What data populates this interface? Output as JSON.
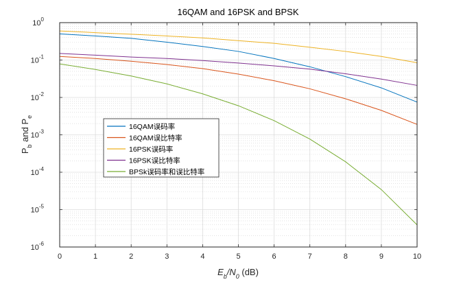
{
  "chart_data": {
    "type": "line",
    "title": "16QAM and 16PSK and BPSK",
    "xlabel": "E_b/N_0 (dB)",
    "ylabel": "P_b and P_e",
    "x_scale": "linear",
    "y_scale": "log",
    "xlim": [
      0,
      10
    ],
    "ylim": [
      1e-06,
      1
    ],
    "x_ticks": [
      0,
      1,
      2,
      3,
      4,
      5,
      6,
      7,
      8,
      9,
      10
    ],
    "y_tick_exponents": [
      -6,
      -5,
      -4,
      -3,
      -2,
      -1,
      0
    ],
    "grid": true,
    "minor_grid": true,
    "legend_position": "center-left",
    "x": [
      0,
      1,
      2,
      3,
      4,
      5,
      6,
      7,
      8,
      9,
      10
    ],
    "series": [
      {
        "name": "16QAM误码率",
        "color": "#0072BD",
        "values": [
          0.5,
          0.44,
          0.38,
          0.3,
          0.23,
          0.17,
          0.11,
          0.066,
          0.036,
          0.018,
          0.0075
        ]
      },
      {
        "name": "16QAM误比特率",
        "color": "#D95319",
        "values": [
          0.125,
          0.11,
          0.093,
          0.076,
          0.059,
          0.042,
          0.028,
          0.017,
          0.0092,
          0.0045,
          0.0019
        ]
      },
      {
        "name": "16PSK误码率",
        "color": "#EDB120",
        "values": [
          0.6,
          0.54,
          0.49,
          0.44,
          0.39,
          0.33,
          0.28,
          0.22,
          0.17,
          0.125,
          0.085
        ]
      },
      {
        "name": "16PSK误比特率",
        "color": "#7E2F8E",
        "values": [
          0.15,
          0.135,
          0.12,
          0.11,
          0.097,
          0.083,
          0.07,
          0.057,
          0.043,
          0.031,
          0.021
        ]
      },
      {
        "name": "BPSk误码率和误比特率",
        "color": "#77AC30",
        "values": [
          0.079,
          0.056,
          0.0375,
          0.023,
          0.0125,
          0.006,
          0.0024,
          0.00077,
          0.00019,
          3.43e-05,
          3.9e-06
        ]
      }
    ]
  }
}
